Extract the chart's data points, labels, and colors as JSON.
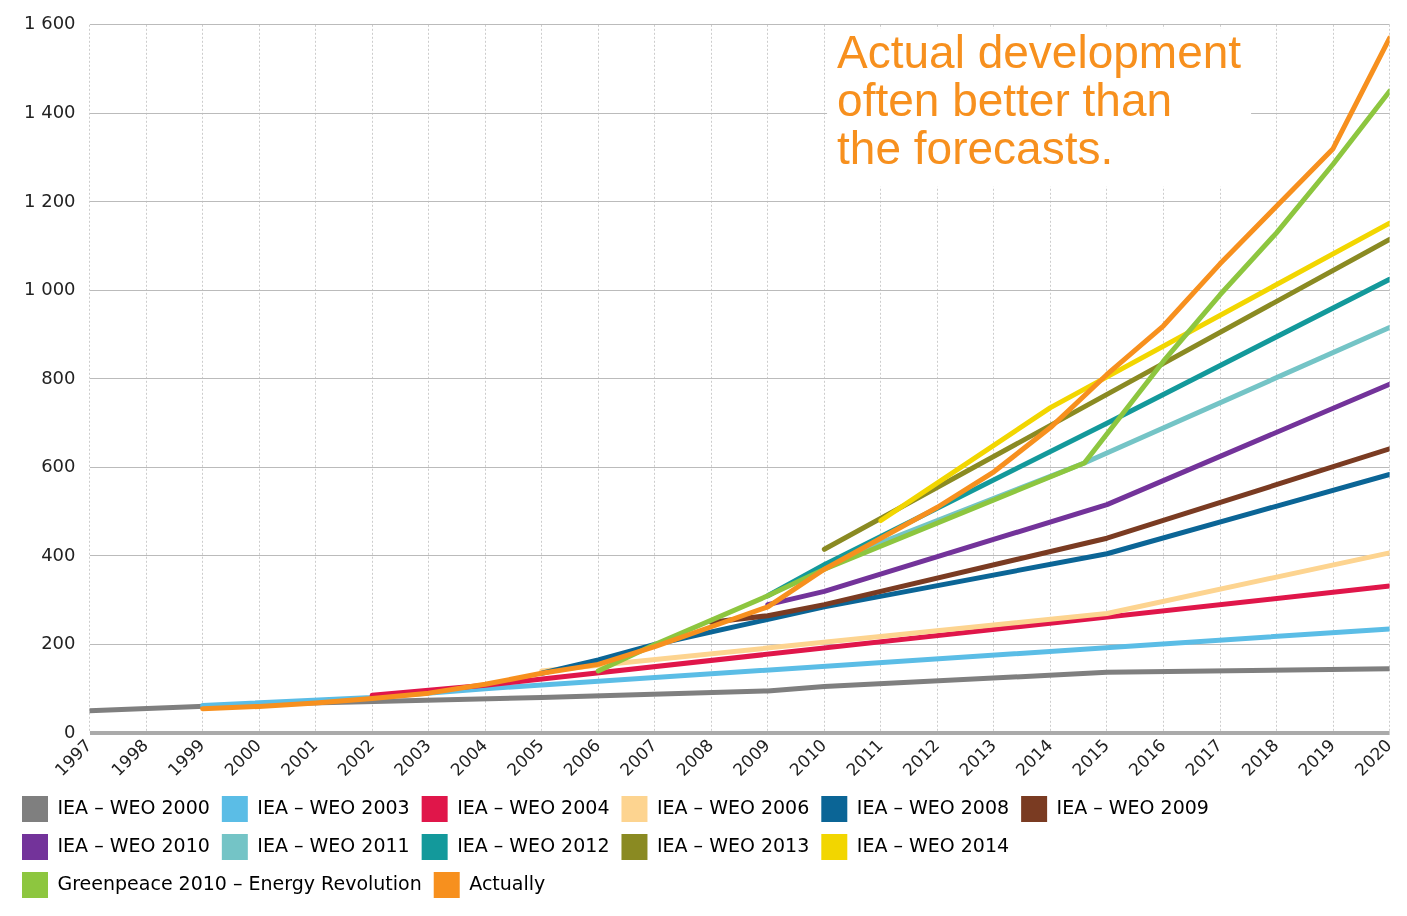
{
  "chart_data": {
    "type": "line",
    "annotations": [
      "Actual development often better than the forecasts."
    ],
    "xlim": [
      1997,
      2020
    ],
    "xticks": [
      1997,
      1998,
      1999,
      2000,
      2001,
      2002,
      2003,
      2004,
      2005,
      2006,
      2007,
      2008,
      2009,
      2010,
      2011,
      2012,
      2013,
      2014,
      2015,
      2016,
      2017,
      2018,
      2019,
      2020
    ],
    "ylim": [
      0,
      1600
    ],
    "yticks": [
      0,
      200,
      400,
      600,
      800,
      {
        "value": 1000,
        "label": "1 000"
      },
      {
        "value": 1200,
        "label": "1 200"
      },
      {
        "value": 1400,
        "label": "1 400"
      },
      {
        "value": 1600,
        "label": "1 600"
      }
    ],
    "grid": true,
    "legend": "bottom",
    "marker": "none",
    "line_style": "solid",
    "series": [
      {
        "name": "IEA – WEO 2000",
        "color": "#7f7f7f",
        "x": [
          1997,
          2000,
          2005,
          2009,
          2010,
          2015,
          2020
        ],
        "values": [
          50,
          65,
          80,
          95,
          105,
          137,
          145
        ]
      },
      {
        "name": "IEA – WEO 2003",
        "color": "#5bbde6",
        "x": [
          1999,
          2002,
          2004,
          2020
        ],
        "values": [
          62,
          80,
          100,
          235
        ]
      },
      {
        "name": "IEA – WEO 2004",
        "color": "#e0164a",
        "x": [
          2002,
          2004,
          2020
        ],
        "values": [
          85,
          108,
          332
        ]
      },
      {
        "name": "IEA – WEO 2006",
        "color": "#fdd490",
        "x": [
          2005,
          2015,
          2020
        ],
        "values": [
          140,
          270,
          407
        ]
      },
      {
        "name": "IEA – WEO 2008",
        "color": "#0b6596",
        "x": [
          2005,
          2006,
          2007,
          2010,
          2015,
          2020
        ],
        "values": [
          135,
          165,
          200,
          285,
          405,
          584
        ]
      },
      {
        "name": "IEA – WEO 2009",
        "color": "#7a3b22",
        "x": [
          2008,
          2009,
          2010,
          2015,
          2020
        ],
        "values": [
          250,
          265,
          290,
          440,
          642
        ]
      },
      {
        "name": "IEA – WEO 2010",
        "color": "#73339a",
        "x": [
          2009,
          2010,
          2015,
          2020
        ],
        "values": [
          290,
          320,
          516,
          788
        ]
      },
      {
        "name": "IEA – WEO 2011",
        "color": "#74c4c6",
        "x": [
          2010,
          2014.6,
          2020
        ],
        "values": [
          380,
          610,
          916
        ]
      },
      {
        "name": "IEA – WEO 2012",
        "color": "#13999b",
        "x": [
          2009,
          2010,
          2015,
          2020
        ],
        "values": [
          310,
          380,
          700,
          1025
        ]
      },
      {
        "name": "IEA – WEO 2013",
        "color": "#8a8a22",
        "x": [
          2010,
          2015,
          2020
        ],
        "values": [
          415,
          765,
          1115
        ]
      },
      {
        "name": "IEA – WEO 2014",
        "color": "#f2d600",
        "x": [
          2011,
          2014,
          2020
        ],
        "values": [
          480,
          735,
          1152
        ]
      },
      {
        "name": "Greenpeace 2010 – Energy Revolution",
        "color": "#8dc63f",
        "x": [
          2006,
          2007,
          2009,
          2010,
          2014.6,
          2016,
          2017,
          2018,
          2019,
          2020
        ],
        "values": [
          140,
          200,
          310,
          370,
          610,
          840,
          990,
          1130,
          1285,
          1450
        ]
      },
      {
        "name": "Actually",
        "color": "#f7901e",
        "x": [
          1999,
          2000,
          2001,
          2002,
          2003,
          2004,
          2005,
          2006,
          2007,
          2008,
          2009,
          2010,
          2011,
          2012,
          2013,
          2014,
          2015,
          2016,
          2017,
          2018,
          2019,
          2020
        ],
        "values": [
          55,
          60,
          68,
          78,
          90,
          110,
          135,
          155,
          195,
          240,
          285,
          370,
          440,
          510,
          590,
          690,
          810,
          920,
          1060,
          1190,
          1320,
          1570
        ]
      }
    ]
  }
}
